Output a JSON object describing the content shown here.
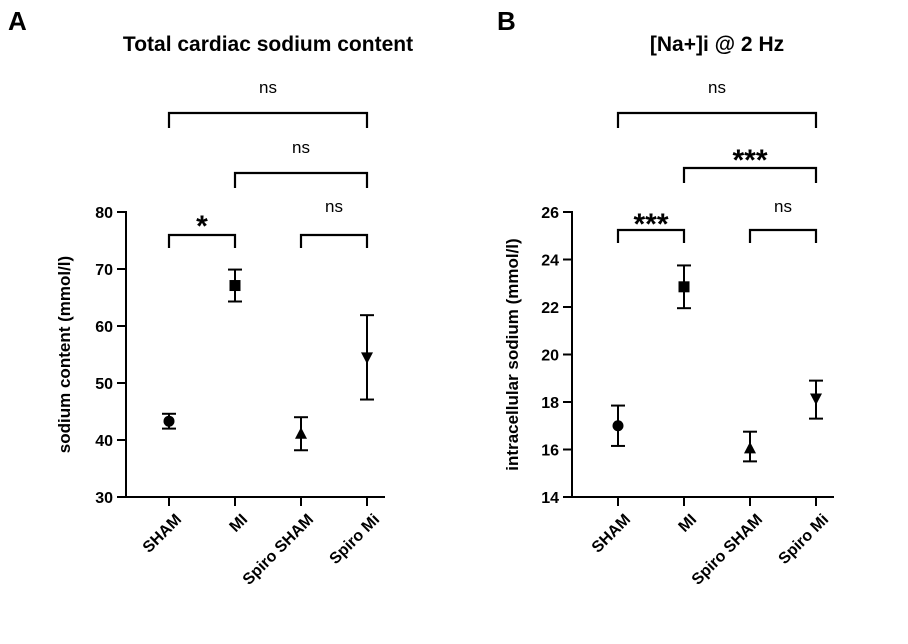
{
  "chart_data": [
    {
      "type": "scatter",
      "panel": "A",
      "title": "Total cardiac sodium content",
      "ylabel": "sodium content (mmol/l)",
      "ylim": [
        30,
        80
      ],
      "yticks": [
        30,
        40,
        50,
        60,
        70,
        80
      ],
      "categories": [
        "SHAM",
        "MI",
        "Spiro SHAM",
        "Spiro Mi"
      ],
      "points": [
        {
          "category": "SHAM",
          "mean": 43.3,
          "low": 42.0,
          "high": 44.6,
          "marker": "circle"
        },
        {
          "category": "MI",
          "mean": 67.1,
          "low": 64.3,
          "high": 69.9,
          "marker": "square"
        },
        {
          "category": "Spiro SHAM",
          "mean": 41.1,
          "low": 38.2,
          "high": 44.0,
          "marker": "triangle-up"
        },
        {
          "category": "Spiro Mi",
          "mean": 54.5,
          "low": 47.1,
          "high": 61.9,
          "marker": "triangle-down"
        }
      ],
      "comparisons": [
        {
          "from": "SHAM",
          "to": "Spiro Mi",
          "label": "ns"
        },
        {
          "from": "MI",
          "to": "Spiro Mi",
          "label": "ns"
        },
        {
          "from": "SHAM",
          "to": "MI",
          "label": "*"
        },
        {
          "from": "Spiro SHAM",
          "to": "Spiro Mi",
          "label": "ns"
        }
      ]
    },
    {
      "type": "scatter",
      "panel": "B",
      "title": "[Na+]i @ 2 Hz",
      "ylabel": "intracellular sodium (mmol/l)",
      "ylim": [
        14,
        26
      ],
      "yticks": [
        14,
        16,
        18,
        20,
        22,
        24,
        26
      ],
      "categories": [
        "SHAM",
        "MI",
        "Spiro SHAM",
        "Spiro Mi"
      ],
      "points": [
        {
          "category": "SHAM",
          "mean": 17.0,
          "low": 16.15,
          "high": 17.85,
          "marker": "circle"
        },
        {
          "category": "MI",
          "mean": 22.85,
          "low": 21.95,
          "high": 23.75,
          "marker": "square"
        },
        {
          "category": "Spiro SHAM",
          "mean": 16.05,
          "low": 15.5,
          "high": 16.75,
          "marker": "triangle-up"
        },
        {
          "category": "Spiro Mi",
          "mean": 18.15,
          "low": 17.3,
          "high": 18.9,
          "marker": "triangle-down"
        }
      ],
      "comparisons": [
        {
          "from": "SHAM",
          "to": "Spiro Mi",
          "label": "ns"
        },
        {
          "from": "MI",
          "to": "Spiro Mi",
          "label": "***"
        },
        {
          "from": "SHAM",
          "to": "MI",
          "label": "***"
        },
        {
          "from": "Spiro SHAM",
          "to": "Spiro Mi",
          "label": "ns"
        }
      ]
    }
  ]
}
